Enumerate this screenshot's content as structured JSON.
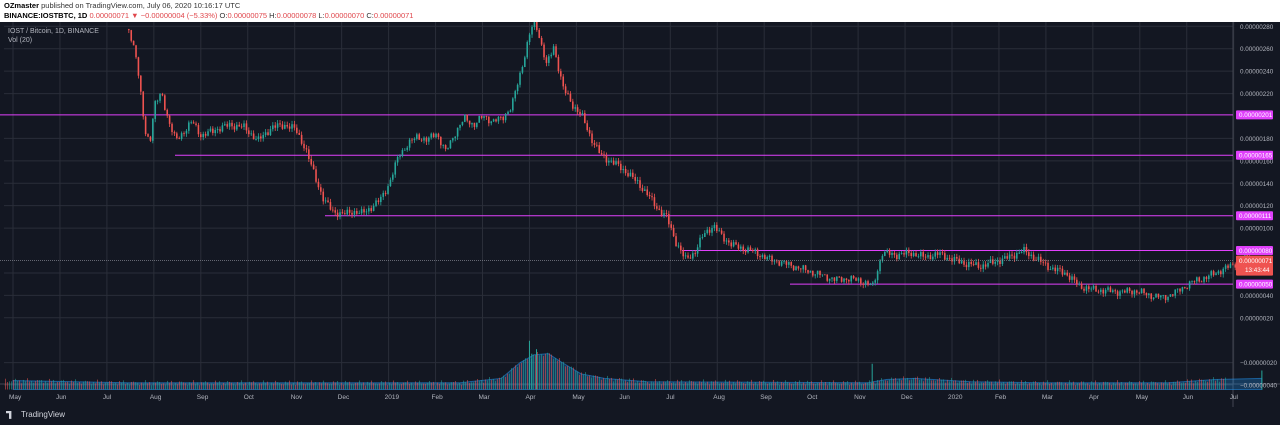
{
  "header": {
    "author": "OZmaster",
    "published_text": "published on TradingView.com, July 06, 2020 10:16:17 UTC",
    "symbol_line": "BINANCE:IOSTBTC, 1D",
    "close_value": "0.00000071",
    "change_arrow": "▼",
    "change_text": "−0.00000004 (−5.33%)",
    "o_label": "O:",
    "o_value": "0.00000075",
    "h_label": "H:",
    "h_value": "0.00000078",
    "l_label": "L:",
    "l_value": "0.00000070",
    "c_label": "C:",
    "c_value": "0.00000071"
  },
  "legend": {
    "title": "IOST / Bitcoin, 1D, BINANCE",
    "volume": "Vol (20)"
  },
  "footer": {
    "brand": "TradingView"
  },
  "colors": {
    "up": "#26a69a",
    "down": "#ef5350",
    "level": "#e040fb",
    "grid": "#2a2e39",
    "label_bg": "#e040fb",
    "price_label_bg": "#ef5350",
    "volume_ma": "#2196f3"
  },
  "chart_data": {
    "type": "candlestick",
    "y_ticks": [
      "0.00000280",
      "0.00000260",
      "0.00000240",
      "0.00000220",
      "0.00000180",
      "0.00000160",
      "0.00000140",
      "0.00000120",
      "0.00000100",
      "0.00000060",
      "0.00000040",
      "0.00000020",
      "−0.00000020",
      "−0.00000040"
    ],
    "y_tick_values": [
      280,
      260,
      240,
      220,
      180,
      160,
      140,
      120,
      100,
      60,
      40,
      20,
      -20,
      -40
    ],
    "ylim": [
      -45,
      285
    ],
    "x_ticks": [
      "May",
      "Jun",
      "Jul",
      "Aug",
      "Sep",
      "Oct",
      "Nov",
      "Dec",
      "2019",
      "Feb",
      "Mar",
      "Apr",
      "May",
      "Jun",
      "Jul",
      "Aug",
      "Sep",
      "Oct",
      "Nov",
      "Dec",
      "2020",
      "Feb",
      "Mar",
      "Apr",
      "May",
      "Jun",
      "Jul"
    ],
    "levels": [
      {
        "label": "0.00000201",
        "value": 201
      },
      {
        "label": "0.00000165",
        "value": 165
      },
      {
        "label": "0.00000111",
        "value": 111
      },
      {
        "label": "0.00000080",
        "value": 80
      },
      {
        "label": "0.00000050",
        "value": 50
      }
    ],
    "current_price": {
      "label": "0.00000071",
      "value": 71,
      "countdown": "13:43:44"
    },
    "price_path": [
      [
        0,
        285
      ],
      [
        2.4,
        285
      ],
      [
        2.6,
        255
      ],
      [
        2.8,
        185
      ],
      [
        2.9,
        178
      ],
      [
        3.0,
        210
      ],
      [
        3.15,
        220
      ],
      [
        3.3,
        195
      ],
      [
        3.45,
        178
      ],
      [
        3.6,
        185
      ],
      [
        3.8,
        195
      ],
      [
        4.0,
        182
      ],
      [
        4.3,
        188
      ],
      [
        4.6,
        192
      ],
      [
        4.9,
        190
      ],
      [
        5.2,
        178
      ],
      [
        5.5,
        190
      ],
      [
        5.8,
        192
      ],
      [
        6.0,
        188
      ],
      [
        6.2,
        172
      ],
      [
        6.4,
        148
      ],
      [
        6.6,
        125
      ],
      [
        6.8,
        115
      ],
      [
        7.0,
        112
      ],
      [
        7.2,
        115
      ],
      [
        7.4,
        113
      ],
      [
        7.6,
        118
      ],
      [
        7.8,
        125
      ],
      [
        8.0,
        140
      ],
      [
        8.2,
        165
      ],
      [
        8.4,
        175
      ],
      [
        8.6,
        182
      ],
      [
        8.8,
        178
      ],
      [
        9.0,
        185
      ],
      [
        9.2,
        168
      ],
      [
        9.4,
        185
      ],
      [
        9.6,
        198
      ],
      [
        9.8,
        192
      ],
      [
        10.0,
        200
      ],
      [
        10.2,
        195
      ],
      [
        10.4,
        198
      ],
      [
        10.6,
        208
      ],
      [
        10.8,
        240
      ],
      [
        11.0,
        275
      ],
      [
        11.1,
        285
      ],
      [
        11.2,
        270
      ],
      [
        11.35,
        245
      ],
      [
        11.5,
        262
      ],
      [
        11.7,
        225
      ],
      [
        11.9,
        210
      ],
      [
        12.1,
        200
      ],
      [
        12.3,
        180
      ],
      [
        12.5,
        165
      ],
      [
        12.7,
        160
      ],
      [
        12.9,
        155
      ],
      [
        13.1,
        148
      ],
      [
        13.3,
        140
      ],
      [
        13.5,
        130
      ],
      [
        13.7,
        118
      ],
      [
        13.9,
        110
      ],
      [
        14.1,
        88
      ],
      [
        14.3,
        72
      ],
      [
        14.5,
        78
      ],
      [
        14.7,
        95
      ],
      [
        14.9,
        102
      ],
      [
        15.1,
        92
      ],
      [
        15.3,
        85
      ],
      [
        15.5,
        82
      ],
      [
        15.7,
        80
      ],
      [
        15.9,
        76
      ],
      [
        16.1,
        72
      ],
      [
        16.3,
        70
      ],
      [
        16.6,
        66
      ],
      [
        16.9,
        62
      ],
      [
        17.2,
        58
      ],
      [
        17.5,
        54
      ],
      [
        17.8,
        55
      ],
      [
        18.1,
        52
      ],
      [
        18.3,
        48
      ],
      [
        18.5,
        78
      ],
      [
        18.8,
        76
      ],
      [
        19.1,
        78
      ],
      [
        19.4,
        74
      ],
      [
        19.7,
        77
      ],
      [
        20.0,
        72
      ],
      [
        20.3,
        68
      ],
      [
        20.6,
        66
      ],
      [
        20.9,
        70
      ],
      [
        21.2,
        74
      ],
      [
        21.5,
        80
      ],
      [
        21.8,
        72
      ],
      [
        22.1,
        64
      ],
      [
        22.4,
        60
      ],
      [
        22.7,
        48
      ],
      [
        23.0,
        45
      ],
      [
        23.3,
        44
      ],
      [
        23.6,
        43
      ],
      [
        23.9,
        44
      ],
      [
        24.2,
        40
      ],
      [
        24.5,
        38
      ],
      [
        24.8,
        44
      ],
      [
        25.1,
        52
      ],
      [
        25.4,
        56
      ],
      [
        25.7,
        62
      ],
      [
        26.0,
        68
      ],
      [
        26.3,
        74
      ],
      [
        26.5,
        63
      ],
      [
        26.6,
        72
      ]
    ],
    "volume_profile": [
      [
        0,
        -36
      ],
      [
        2.5,
        -38
      ],
      [
        5,
        -38
      ],
      [
        8,
        -38
      ],
      [
        9.5,
        -38
      ],
      [
        10.4,
        -34
      ],
      [
        10.8,
        -20
      ],
      [
        11.1,
        -13
      ],
      [
        11.4,
        -12
      ],
      [
        11.7,
        -20
      ],
      [
        12.1,
        -30
      ],
      [
        12.6,
        -34
      ],
      [
        13.5,
        -37
      ],
      [
        18.2,
        -38
      ],
      [
        18.6,
        -35
      ],
      [
        19.2,
        -34
      ],
      [
        20.4,
        -37
      ],
      [
        22,
        -38
      ],
      [
        24.6,
        -38
      ],
      [
        25.6,
        -35
      ],
      [
        26.6,
        -34
      ]
    ],
    "volume_spikes": [
      [
        11.0,
        -0.5
      ],
      [
        11.05,
        -12
      ],
      [
        11.15,
        -8
      ],
      [
        18.3,
        -21
      ],
      [
        26.6,
        -27
      ]
    ]
  }
}
